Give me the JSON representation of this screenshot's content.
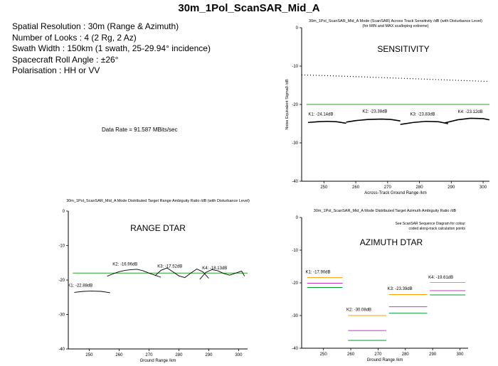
{
  "title": "30m_1Pol_ScanSAR_Mid_A",
  "specs": [
    "Spatial Resolution  : 30m (Range & Azimuth)",
    "Number of Looks : 4 (2 Rg, 2 Az)",
    "Swath Width : 150km (1 swath, 25-29.94° incidence)",
    "Spacecraft Roll Angle : ±26°",
    "Polarisation : HH or VV"
  ],
  "data_rate": "Data Rate = 91.587 MBits/sec",
  "colors": {
    "threshold": "#2ca02c",
    "curve": "#000000",
    "orange": "#ff9900",
    "magenta": "#cc33cc",
    "green": "#009933"
  },
  "chart_data": [
    {
      "id": "sensitivity",
      "type": "line",
      "title": "30m_1Pol_ScanSAR_Mid_A Mode (ScanSAR) Across Track Sensitivity /dB (with Disturbance Level)",
      "subtitle": "(for MIN and MAX scalloping extreme)",
      "label": "SENSITIVITY",
      "xlabel": "Across-Track Ground Range /km",
      "ylabel": "Noise Equivalent Sigma0 /dB",
      "xlim": [
        243,
        302
      ],
      "ylim": [
        -40,
        0
      ],
      "xticks": [
        250,
        260,
        270,
        280,
        290,
        300
      ],
      "yticks": [
        0,
        -10,
        -20,
        -30,
        -40
      ],
      "grid": false,
      "threshold": -20,
      "dotted": {
        "x": [
          243,
          255,
          265,
          275,
          285,
          295,
          302
        ],
        "y": [
          -12.3,
          -12.6,
          -12.9,
          -13.2,
          -13.5,
          -13.8,
          -14.0
        ]
      },
      "series": [
        {
          "x": [
            245,
            248,
            251,
            254,
            257
          ],
          "y": [
            -24.7,
            -24.5,
            -24.4,
            -24.5,
            -24.9
          ]
        },
        {
          "x": [
            257,
            260,
            264,
            268,
            271,
            274
          ],
          "y": [
            -24.6,
            -24.2,
            -23.9,
            -23.8,
            -23.9,
            -24.3
          ]
        },
        {
          "x": [
            274,
            278,
            282,
            286,
            289
          ],
          "y": [
            -25.2,
            -24.7,
            -24.4,
            -24.5,
            -25.0
          ]
        },
        {
          "x": [
            288,
            292,
            296,
            300,
            302
          ],
          "y": [
            -24.8,
            -24.0,
            -23.6,
            -23.7,
            -24.0
          ]
        }
      ],
      "annotations": [
        {
          "text": "K1: -24.14dB",
          "x": 249,
          "y": -22.9
        },
        {
          "text": "K2: -23.38dB",
          "x": 266,
          "y": -22.1
        },
        {
          "text": "K3: -23.83dB",
          "x": 281,
          "y": -22.9
        },
        {
          "text": "K4: -23.12dB",
          "x": 296,
          "y": -22.2
        }
      ]
    },
    {
      "id": "range-dtar",
      "type": "line",
      "title": "30m_1Pol_ScanSAR_Mid_A Mode Distributed Target Range Ambiguity Ratio /dB (with Disturbance Level)",
      "label": "RANGE DTAR",
      "xlabel": "Ground Range /km",
      "ylabel": "",
      "xlim": [
        243,
        303
      ],
      "ylim": [
        -40,
        0
      ],
      "xticks": [
        250,
        260,
        270,
        280,
        290,
        300
      ],
      "yticks": [
        0,
        -10,
        -20,
        -30,
        -40
      ],
      "grid": false,
      "threshold": -18,
      "series": [
        {
          "x": [
            245,
            248,
            251,
            254,
            257
          ],
          "y": [
            -23.6,
            -23.3,
            -23.2,
            -23.3,
            -23.7
          ]
        },
        {
          "x": [
            256,
            258,
            260,
            262,
            264,
            266,
            268,
            270,
            272,
            274
          ],
          "y": [
            -18.9,
            -18.2,
            -17.6,
            -17.2,
            -17.0,
            -16.9,
            -17.3,
            -18.0,
            -18.6,
            -19.2
          ]
        },
        {
          "x": [
            272,
            274,
            276,
            278,
            280,
            282,
            284,
            286,
            288,
            290
          ],
          "y": [
            -18.8,
            -17.2,
            -16.5,
            -17.6,
            -18.8,
            -19.3,
            -18.0,
            -16.8,
            -17.6,
            -19.5
          ]
        },
        {
          "x": [
            287,
            289,
            291,
            293,
            295,
            297,
            299,
            301,
            302
          ],
          "y": [
            -19.8,
            -17.8,
            -17.0,
            -17.3,
            -18.1,
            -18.6,
            -18.0,
            -17.4,
            -18.9
          ]
        }
      ],
      "annotations": [
        {
          "text": "K1: -22.88dB",
          "x": 247,
          "y": -22.0
        },
        {
          "text": "K2: -16.96dB",
          "x": 262,
          "y": -15.8
        },
        {
          "text": "K3: -17.52dB",
          "x": 277,
          "y": -16.4
        },
        {
          "text": "K4: -18.13dB",
          "x": 292,
          "y": -16.9
        }
      ]
    },
    {
      "id": "azimuth-dtar",
      "type": "line",
      "title": "30m_1Pol_ScanSAR_Mid_A Mode Distributed Target Azimuth Ambiguity Ratio /dB",
      "label": "AZIMUTH DTAR",
      "note": [
        "See ScanSAR Sequence Diagram for colour",
        "coded along-track calculation points"
      ],
      "xlabel": "Ground Range /km",
      "ylabel": "",
      "xlim": [
        242,
        303
      ],
      "ylim": [
        -40,
        0
      ],
      "xticks": [
        250,
        260,
        270,
        280,
        290,
        300
      ],
      "yticks": [
        0,
        -10,
        -20,
        -30,
        -40
      ],
      "grid": false,
      "segments": [
        {
          "x": [
            244,
            257
          ],
          "y": -18.4,
          "color": "#ff9900"
        },
        {
          "x": [
            244,
            257
          ],
          "y": -20.1,
          "color": "#cc33cc"
        },
        {
          "x": [
            244,
            257
          ],
          "y": -21.4,
          "color": "#009933"
        },
        {
          "x": [
            259,
            273
          ],
          "y": -30.0,
          "color": "#ff9900"
        },
        {
          "x": [
            259,
            273
          ],
          "y": -34.6,
          "color": "#cc33cc"
        },
        {
          "x": [
            259,
            273
          ],
          "y": -37.6,
          "color": "#009933"
        },
        {
          "x": [
            274,
            288
          ],
          "y": -23.6,
          "color": "#ff9900"
        },
        {
          "x": [
            274,
            288
          ],
          "y": -27.3,
          "color": "#cc33cc"
        },
        {
          "x": [
            274,
            288
          ],
          "y": -29.3,
          "color": "#009933"
        },
        {
          "x": [
            289,
            302
          ],
          "y": -19.9,
          "color": "#ff9900"
        },
        {
          "x": [
            289,
            302
          ],
          "y": -22.4,
          "color": "#cc33cc"
        },
        {
          "x": [
            289,
            302
          ],
          "y": -23.7,
          "color": "#009933"
        }
      ],
      "annotations": [
        {
          "text": "K1: -17.90dB",
          "x": 248,
          "y": -17.1
        },
        {
          "text": "K2: -30.08dB",
          "x": 263,
          "y": -28.6
        },
        {
          "text": "K3: -23.39dB",
          "x": 278,
          "y": -22.2
        },
        {
          "text": "K4: -19.61dB",
          "x": 293,
          "y": -18.7
        }
      ]
    }
  ]
}
